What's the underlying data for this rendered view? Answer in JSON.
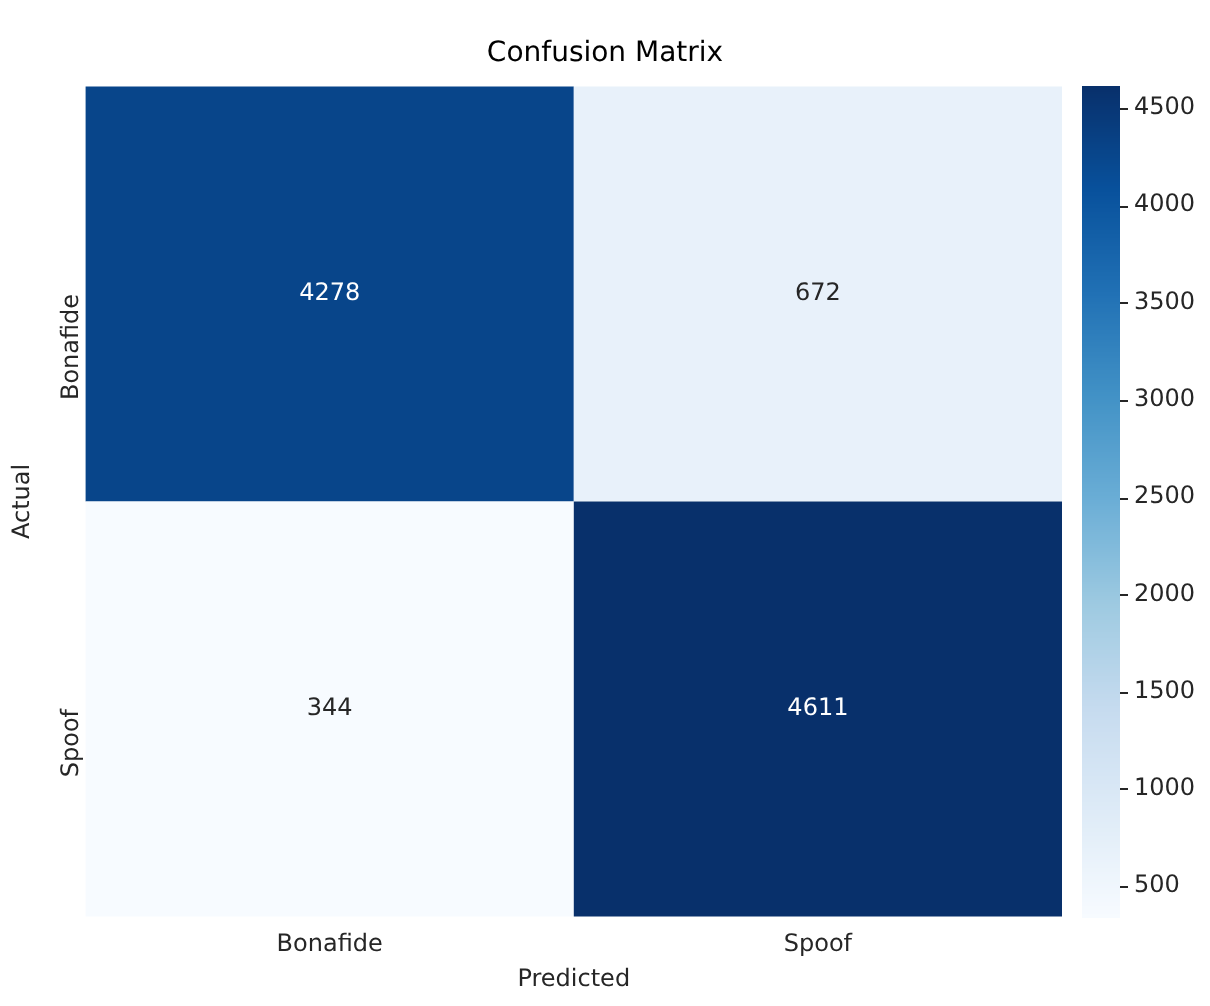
{
  "chart_data": {
    "type": "heatmap",
    "title": "Confusion Matrix",
    "xlabel": "Predicted",
    "ylabel": "Actual",
    "categories": [
      "Bonafide",
      "Spoof"
    ],
    "y_categories": [
      "Bonafide",
      "Spoof"
    ],
    "cells": [
      [
        4278,
        672
      ],
      [
        344,
        4611
      ]
    ],
    "data_labels": true,
    "clim": [
      344,
      4611
    ],
    "cticks": [
      500,
      1000,
      1500,
      2000,
      2500,
      3000,
      3500,
      4000,
      4500
    ]
  }
}
